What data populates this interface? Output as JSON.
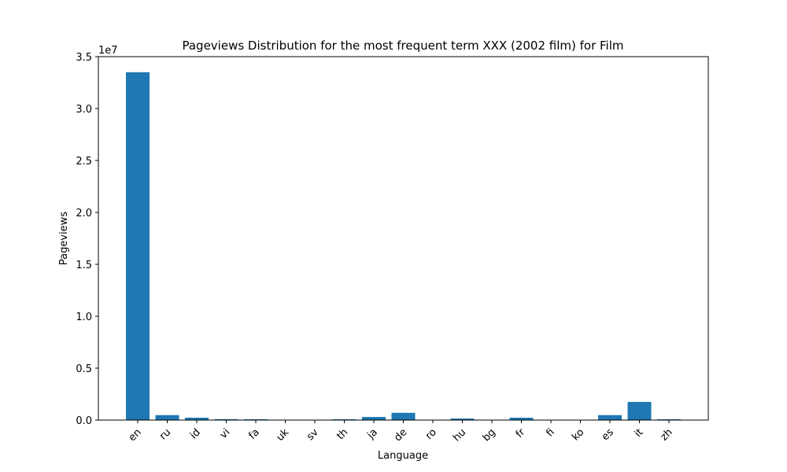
{
  "chart_data": {
    "type": "bar",
    "title": "Pageviews Distribution for the most frequent term XXX (2002 film) for Film",
    "xlabel": "Language",
    "ylabel": "Pageviews",
    "y_offset_label": "1e7",
    "categories": [
      "en",
      "ru",
      "id",
      "vi",
      "fa",
      "uk",
      "sv",
      "th",
      "ja",
      "de",
      "ro",
      "hu",
      "bg",
      "fr",
      "fi",
      "ko",
      "es",
      "it",
      "zh"
    ],
    "values": [
      33500000,
      480000,
      230000,
      90000,
      80000,
      20000,
      25000,
      80000,
      300000,
      700000,
      20000,
      150000,
      20000,
      230000,
      20000,
      20000,
      480000,
      1750000,
      80000
    ],
    "ylim": [
      0,
      35000000
    ],
    "yticks": [
      0,
      5000000,
      10000000,
      15000000,
      20000000,
      25000000,
      30000000,
      35000000
    ],
    "ytick_labels": [
      "0.0",
      "0.5",
      "1.0",
      "1.5",
      "2.0",
      "2.5",
      "3.0",
      "3.5"
    ],
    "bar_color": "#1f77b4",
    "grid": false
  }
}
